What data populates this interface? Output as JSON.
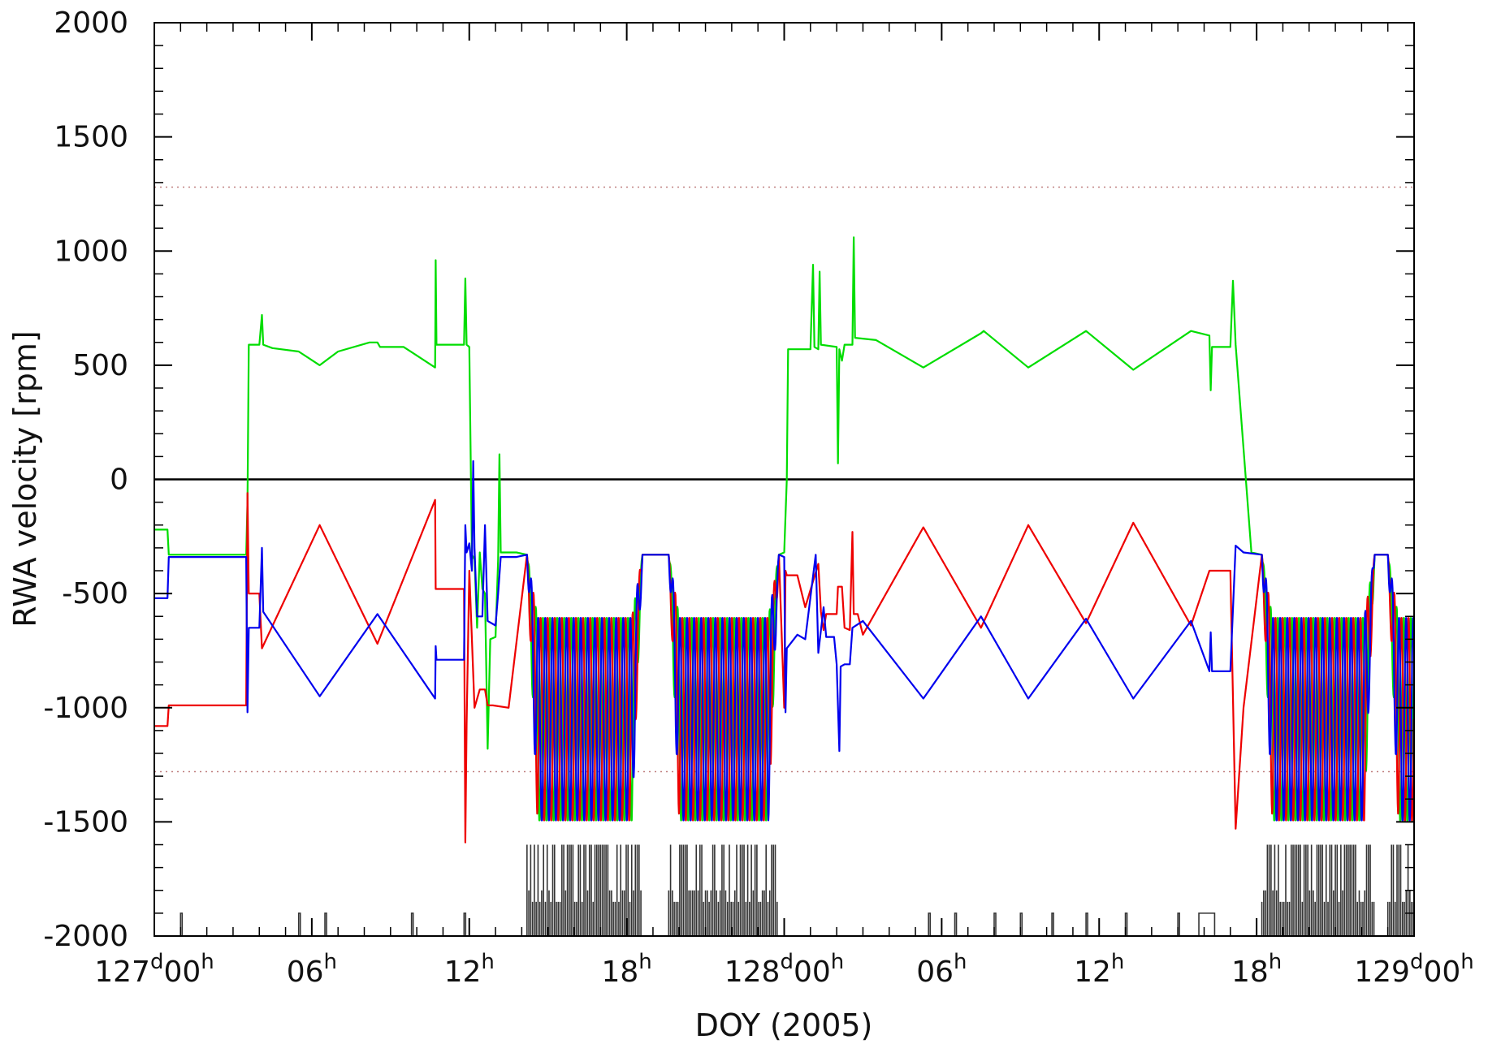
{
  "chart_data": {
    "type": "line",
    "title": "",
    "xlabel": "DOY (2005)",
    "ylabel": "RWA velocity [rpm]",
    "xlim": [
      0,
      48
    ],
    "ylim": [
      -2000,
      2000
    ],
    "x_unit": "hours since 127d00h",
    "y_ticks": [
      "2000",
      "1500",
      "1000",
      "500",
      "0",
      "-500",
      "-1000",
      "-1500",
      "-2000"
    ],
    "y_tick_values": [
      2000,
      1500,
      1000,
      500,
      0,
      -500,
      -1000,
      -1500,
      -2000
    ],
    "x_ticks": [
      {
        "value": 0,
        "main": "127",
        "sup1": "d",
        "rest": "00",
        "sup2": "h"
      },
      {
        "value": 6,
        "main": "",
        "sup1": "",
        "rest": "06",
        "sup2": "h"
      },
      {
        "value": 12,
        "main": "",
        "sup1": "",
        "rest": "12",
        "sup2": "h"
      },
      {
        "value": 18,
        "main": "",
        "sup1": "",
        "rest": "18",
        "sup2": "h"
      },
      {
        "value": 24,
        "main": "128",
        "sup1": "d",
        "rest": "00",
        "sup2": "h"
      },
      {
        "value": 30,
        "main": "",
        "sup1": "",
        "rest": "06",
        "sup2": "h"
      },
      {
        "value": 36,
        "main": "",
        "sup1": "",
        "rest": "12",
        "sup2": "h"
      },
      {
        "value": 42,
        "main": "",
        "sup1": "",
        "rest": "18",
        "sup2": "h"
      },
      {
        "value": 48,
        "main": "129",
        "sup1": "d",
        "rest": "00",
        "sup2": "h"
      }
    ],
    "reference_lines": [
      {
        "y": 1280,
        "style": "dotted",
        "color": "#c08080"
      },
      {
        "y": -1280,
        "style": "dotted",
        "color": "#c08080"
      },
      {
        "y": 0,
        "style": "solid",
        "color": "#000000"
      }
    ],
    "oscillation_windows": [
      [
        14.2,
        18.6
      ],
      [
        19.6,
        23.8
      ],
      [
        42.2,
        46.5
      ],
      [
        47.0,
        48.0
      ]
    ],
    "colors": {
      "green": "#00dd00",
      "red": "#ee0000",
      "blue": "#0000ee",
      "events": "#333333"
    },
    "series": [
      {
        "color": "#00dd00",
        "points": [
          [
            0,
            -220
          ],
          [
            0.5,
            -220
          ],
          [
            0.55,
            -330
          ],
          [
            3.5,
            -330
          ],
          [
            3.55,
            -100
          ],
          [
            3.6,
            590
          ],
          [
            4.0,
            590
          ],
          [
            4.1,
            720
          ],
          [
            4.15,
            590
          ],
          [
            4.5,
            575
          ],
          [
            5.5,
            560
          ],
          [
            6.3,
            500
          ],
          [
            7.0,
            560
          ],
          [
            8.2,
            600
          ],
          [
            8.5,
            600
          ],
          [
            8.6,
            580
          ],
          [
            9.5,
            580
          ],
          [
            10.7,
            490
          ],
          [
            10.72,
            960
          ],
          [
            10.75,
            590
          ],
          [
            11.8,
            590
          ],
          [
            11.85,
            880
          ],
          [
            11.9,
            590
          ],
          [
            12.0,
            580
          ],
          [
            12.1,
            -330
          ],
          [
            12.2,
            -350
          ],
          [
            12.3,
            -650
          ],
          [
            12.4,
            -320
          ],
          [
            12.5,
            -480
          ],
          [
            12.6,
            -500
          ],
          [
            12.7,
            -1180
          ],
          [
            12.8,
            -700
          ],
          [
            13.0,
            -690
          ],
          [
            13.1,
            -350
          ],
          [
            13.15,
            110
          ],
          [
            13.2,
            -320
          ],
          [
            13.8,
            -320
          ],
          [
            24.0,
            -320
          ],
          [
            24.1,
            0
          ],
          [
            24.15,
            570
          ],
          [
            25.0,
            570
          ],
          [
            25.1,
            940
          ],
          [
            25.15,
            580
          ],
          [
            25.3,
            570
          ],
          [
            25.35,
            910
          ],
          [
            25.4,
            590
          ],
          [
            26.0,
            580
          ],
          [
            26.05,
            70
          ],
          [
            26.1,
            570
          ],
          [
            26.2,
            520
          ],
          [
            26.3,
            590
          ],
          [
            26.6,
            590
          ],
          [
            26.65,
            1060
          ],
          [
            26.7,
            620
          ],
          [
            27.5,
            610
          ],
          [
            29.3,
            490
          ],
          [
            31.5,
            640
          ],
          [
            31.6,
            650
          ],
          [
            33.3,
            490
          ],
          [
            35.5,
            650
          ],
          [
            37.3,
            480
          ],
          [
            39.5,
            650
          ],
          [
            40.2,
            630
          ],
          [
            40.25,
            390
          ],
          [
            40.3,
            580
          ],
          [
            41.0,
            580
          ],
          [
            41.1,
            870
          ],
          [
            41.2,
            590
          ],
          [
            41.8,
            -320
          ],
          [
            42.2,
            -330
          ]
        ]
      },
      {
        "color": "#ee0000",
        "points": [
          [
            0,
            -1080
          ],
          [
            0.5,
            -1080
          ],
          [
            0.55,
            -990
          ],
          [
            3.5,
            -990
          ],
          [
            3.55,
            -60
          ],
          [
            3.6,
            -500
          ],
          [
            4.0,
            -500
          ],
          [
            4.1,
            -740
          ],
          [
            6.3,
            -200
          ],
          [
            8.5,
            -720
          ],
          [
            10.7,
            -90
          ],
          [
            10.72,
            -480
          ],
          [
            11.8,
            -480
          ],
          [
            11.85,
            -1590
          ],
          [
            11.9,
            -1070
          ],
          [
            12.0,
            -400
          ],
          [
            12.2,
            -1000
          ],
          [
            12.4,
            -920
          ],
          [
            12.6,
            -920
          ],
          [
            12.7,
            -990
          ],
          [
            12.9,
            -990
          ],
          [
            13.5,
            -1000
          ],
          [
            24.0,
            -1000
          ],
          [
            24.05,
            -400
          ],
          [
            24.1,
            -420
          ],
          [
            24.5,
            -420
          ],
          [
            24.8,
            -560
          ],
          [
            25.3,
            -370
          ],
          [
            25.4,
            -580
          ],
          [
            25.5,
            -660
          ],
          [
            25.6,
            -590
          ],
          [
            26.0,
            -590
          ],
          [
            26.05,
            -470
          ],
          [
            26.2,
            -470
          ],
          [
            26.3,
            -650
          ],
          [
            26.5,
            -660
          ],
          [
            26.6,
            -230
          ],
          [
            26.65,
            -590
          ],
          [
            26.8,
            -590
          ],
          [
            27.0,
            -680
          ],
          [
            29.3,
            -210
          ],
          [
            31.5,
            -650
          ],
          [
            33.3,
            -200
          ],
          [
            35.5,
            -630
          ],
          [
            37.3,
            -190
          ],
          [
            39.5,
            -640
          ],
          [
            40.2,
            -400
          ],
          [
            41.0,
            -400
          ],
          [
            41.2,
            -1530
          ],
          [
            41.5,
            -1000
          ],
          [
            42.2,
            -1000
          ]
        ]
      },
      {
        "color": "#0000ee",
        "points": [
          [
            0,
            -520
          ],
          [
            0.5,
            -520
          ],
          [
            0.55,
            -340
          ],
          [
            3.5,
            -340
          ],
          [
            3.55,
            -1020
          ],
          [
            3.6,
            -650
          ],
          [
            4.0,
            -650
          ],
          [
            4.1,
            -300
          ],
          [
            4.15,
            -580
          ],
          [
            6.3,
            -950
          ],
          [
            8.5,
            -590
          ],
          [
            10.7,
            -960
          ],
          [
            10.72,
            -730
          ],
          [
            10.75,
            -790
          ],
          [
            11.8,
            -790
          ],
          [
            11.85,
            -200
          ],
          [
            11.9,
            -320
          ],
          [
            12.0,
            -280
          ],
          [
            12.1,
            -400
          ],
          [
            12.15,
            80
          ],
          [
            12.2,
            -300
          ],
          [
            12.3,
            -600
          ],
          [
            12.5,
            -600
          ],
          [
            12.6,
            -200
          ],
          [
            12.7,
            -620
          ],
          [
            13.0,
            -640
          ],
          [
            13.1,
            -500
          ],
          [
            13.2,
            -340
          ],
          [
            13.8,
            -340
          ],
          [
            24.0,
            -340
          ],
          [
            24.05,
            -1020
          ],
          [
            24.1,
            -740
          ],
          [
            24.5,
            -680
          ],
          [
            24.8,
            -700
          ],
          [
            25.2,
            -330
          ],
          [
            25.3,
            -760
          ],
          [
            25.5,
            -560
          ],
          [
            25.6,
            -690
          ],
          [
            25.9,
            -690
          ],
          [
            26.0,
            -810
          ],
          [
            26.1,
            -1190
          ],
          [
            26.15,
            -820
          ],
          [
            26.3,
            -810
          ],
          [
            26.5,
            -810
          ],
          [
            26.6,
            -650
          ],
          [
            27.0,
            -620
          ],
          [
            29.3,
            -960
          ],
          [
            31.5,
            -600
          ],
          [
            33.3,
            -960
          ],
          [
            35.5,
            -610
          ],
          [
            37.3,
            -960
          ],
          [
            39.5,
            -620
          ],
          [
            40.2,
            -840
          ],
          [
            40.25,
            -670
          ],
          [
            40.3,
            -840
          ],
          [
            41.0,
            -840
          ],
          [
            41.2,
            -290
          ],
          [
            41.5,
            -320
          ],
          [
            42.2,
            -330
          ]
        ]
      }
    ]
  }
}
